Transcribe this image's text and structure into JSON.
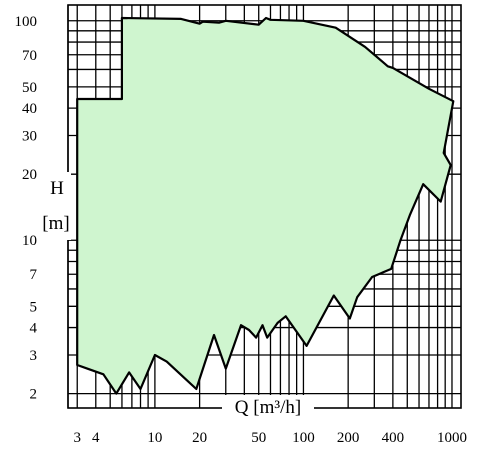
{
  "chart_data": {
    "type": "area",
    "title": "",
    "xlabel": "Q [m³/h]",
    "ylabel": "H [m]",
    "x_scale": "log",
    "y_scale": "log",
    "xlim": [
      2.6,
      1150
    ],
    "ylim": [
      1.72,
      118
    ],
    "grid": true,
    "fill_color": "#cff5cf",
    "x_tick_labels": [
      "3",
      "4",
      "10",
      "20",
      "50",
      "100",
      "200",
      "400",
      "1000"
    ],
    "y_tick_labels": [
      "2",
      "3",
      "4",
      "5",
      "7",
      "10",
      "20",
      "30",
      "40",
      "50",
      "70",
      "100"
    ],
    "x_gridlines": [
      2.6,
      3,
      4,
      5,
      6,
      7,
      8,
      9,
      10,
      20,
      30,
      40,
      50,
      60,
      70,
      80,
      90,
      100,
      200,
      300,
      400,
      500,
      600,
      700,
      800,
      900,
      1000
    ],
    "y_gridlines": [
      2,
      3,
      4,
      5,
      6,
      7,
      8,
      9,
      10,
      20,
      30,
      40,
      50,
      60,
      70,
      80,
      90,
      100
    ],
    "series": [
      {
        "label": "",
        "x": [
          3.0,
          3.0,
          6.0,
          6.0,
          15.0,
          20.0,
          21.0,
          27.0,
          30.0,
          50.0,
          56.0,
          60.0,
          100.0,
          165.0,
          260.0,
          370.0,
          400.0,
          700.0,
          1020.0,
          880.0,
          980.0,
          840.0,
          640.0,
          520.0,
          450.0,
          390.0,
          290.0,
          230.0,
          205.0,
          160.0,
          105.0,
          76.0,
          67.0,
          57.0,
          53.0,
          48.0,
          43.0,
          38.0,
          30.0,
          25.0,
          19.0,
          12.0,
          10.0,
          8.0,
          6.7,
          5.5,
          4.5,
          3.5,
          3.0
        ],
        "y": [
          43.0,
          44.0,
          44.0,
          103.0,
          102.0,
          97.0,
          99.0,
          98.0,
          100.0,
          96.0,
          103.0,
          101.0,
          100.0,
          93.0,
          76.0,
          62.0,
          61.0,
          49.0,
          43.0,
          25.0,
          22.0,
          15.0,
          18.0,
          13.0,
          10.0,
          7.4,
          6.8,
          5.5,
          4.4,
          5.6,
          3.3,
          4.5,
          4.2,
          3.6,
          4.1,
          3.6,
          3.9,
          4.1,
          2.6,
          3.7,
          2.1,
          2.8,
          3.0,
          2.1,
          2.5,
          2.0,
          2.45,
          2.6,
          2.7
        ]
      }
    ]
  }
}
